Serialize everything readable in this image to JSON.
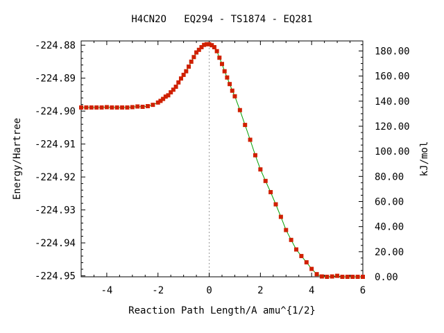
{
  "chart_data": {
    "type": "line",
    "title": "H4CN2O   EQ294 - TS1874 - EQ281",
    "xlabel": "Reaction Path Length/A amu^{1/2}",
    "ylabel": "Energy/Hartree",
    "y2label": "kJ/mol",
    "xlim": [
      -5,
      6
    ],
    "ylim": [
      -224.9503,
      -224.8787
    ],
    "y2lim": [
      0.0,
      188.0
    ],
    "x_ticks": [
      "-4",
      "-2",
      "0",
      "2",
      "4",
      "6"
    ],
    "y_ticks": [
      "-224.88",
      "-224.89",
      "-224.90",
      "-224.91",
      "-224.92",
      "-224.93",
      "-224.94",
      "-224.95"
    ],
    "y2_ticks": [
      "0.00",
      "20.00",
      "40.00",
      "60.00",
      "80.00",
      "100.00",
      "120.00",
      "140.00",
      "160.00",
      "180.00"
    ],
    "ts_marker_x": 0,
    "colors": {
      "line": "#00a000",
      "marker": "#d02000",
      "ts_line": "#999999"
    },
    "series": [
      {
        "x": [
          -5.0,
          -4.8,
          -4.6,
          -4.4,
          -4.2,
          -4.0,
          -3.8,
          -3.6,
          -3.4,
          -3.2,
          -3.0,
          -2.8,
          -2.6,
          -2.4,
          -2.2,
          -2.0,
          -1.9,
          -1.8,
          -1.7,
          -1.6,
          -1.5,
          -1.4,
          -1.3,
          -1.2,
          -1.1,
          -1.0,
          -0.9,
          -0.8,
          -0.7,
          -0.6,
          -0.5,
          -0.4,
          -0.3,
          -0.2,
          -0.1,
          0.0,
          0.1,
          0.2,
          0.3,
          0.4,
          0.5,
          0.6,
          0.7,
          0.8,
          0.9,
          1.0,
          1.2,
          1.4,
          1.6,
          1.8,
          2.0,
          2.2,
          2.4,
          2.6,
          2.8,
          3.0,
          3.2,
          3.4,
          3.6,
          3.8,
          4.0,
          4.2,
          4.4,
          4.6,
          4.8,
          5.0,
          5.2,
          5.4,
          5.6,
          5.8,
          6.0
        ],
        "y": [
          -224.8989,
          -224.8989,
          -224.8989,
          -224.8989,
          -224.8989,
          -224.8988,
          -224.8989,
          -224.8989,
          -224.8989,
          -224.8989,
          -224.8988,
          -224.8986,
          -224.8987,
          -224.8985,
          -224.8981,
          -224.8974,
          -224.8969,
          -224.8963,
          -224.8956,
          -224.8952,
          -224.8943,
          -224.8935,
          -224.8926,
          -224.8913,
          -224.8901,
          -224.889,
          -224.8879,
          -224.8865,
          -224.885,
          -224.8836,
          -224.8822,
          -224.8814,
          -224.8806,
          -224.8799,
          -224.8797,
          -224.8797,
          -224.88,
          -224.8806,
          -224.8818,
          -224.8838,
          -224.8857,
          -224.8879,
          -224.8898,
          -224.8918,
          -224.8938,
          -224.8955,
          -224.8997,
          -224.9042,
          -224.9087,
          -224.9134,
          -224.9177,
          -224.9212,
          -224.9246,
          -224.9283,
          -224.9321,
          -224.9361,
          -224.9391,
          -224.942,
          -224.944,
          -224.9459,
          -224.9479,
          -224.9495,
          -224.9502,
          -224.9503,
          -224.9502,
          -224.95,
          -224.9503,
          -224.9503,
          -224.9503,
          -224.9503,
          -224.9503
        ]
      }
    ]
  }
}
